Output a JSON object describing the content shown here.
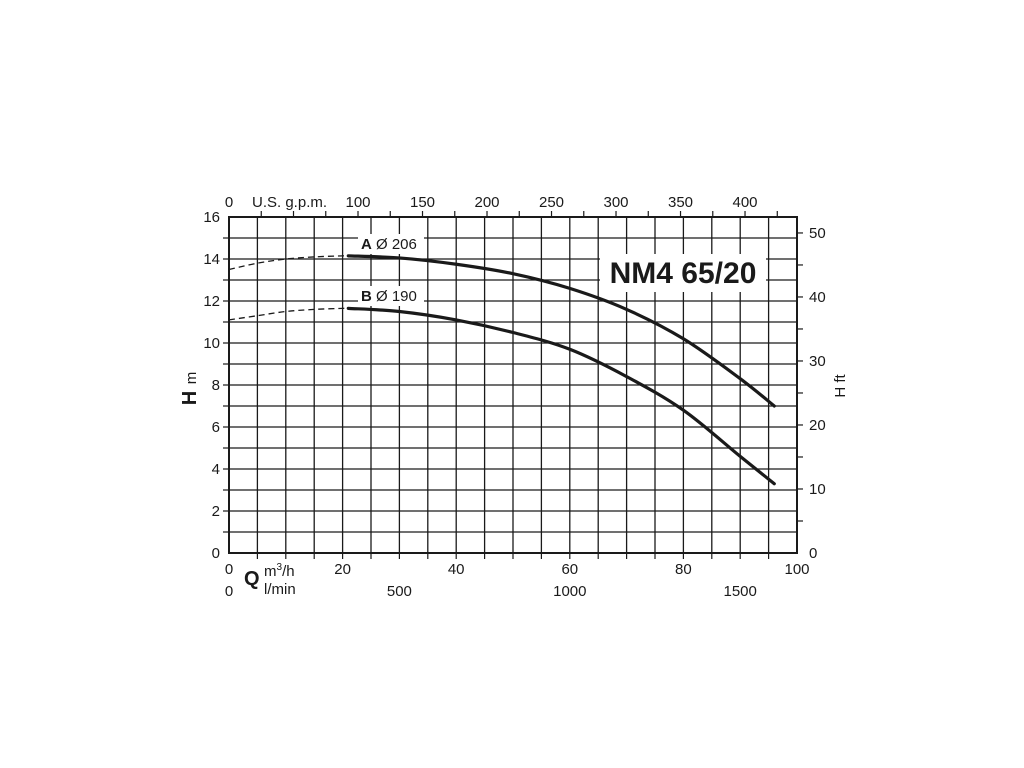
{
  "chart_data": {
    "type": "line",
    "title": "NM4 65/20",
    "x_primary": {
      "quantity": "Q",
      "unit": "m³/h",
      "range": [
        0,
        100
      ],
      "major_ticks": [
        0,
        20,
        40,
        60,
        80,
        100
      ]
    },
    "x_secondary": {
      "unit": "l/min",
      "tick_labels": [
        0,
        500,
        1000,
        1500
      ]
    },
    "x_top": {
      "unit": "U.S. g.p.m.",
      "tick_labels": [
        0,
        100,
        150,
        200,
        250,
        300,
        350,
        400
      ]
    },
    "y_left": {
      "quantity": "H",
      "unit": "m",
      "range": [
        0,
        16
      ],
      "tick_labels": [
        0,
        2,
        4,
        6,
        8,
        10,
        12,
        14,
        16
      ]
    },
    "y_right": {
      "quantity": "H",
      "unit": "ft",
      "tick_labels": [
        0,
        10,
        20,
        30,
        40,
        50
      ]
    },
    "grid": true,
    "series": [
      {
        "name": "A",
        "label": "Ø 206",
        "dashed": {
          "x": [
            0,
            5,
            10,
            15,
            20,
            21
          ],
          "y": [
            13.5,
            13.8,
            14.0,
            14.1,
            14.15,
            14.15
          ]
        },
        "solid": {
          "x": [
            21,
            30,
            40,
            50,
            60,
            70,
            80,
            90,
            96
          ],
          "y": [
            14.15,
            14.05,
            13.75,
            13.3,
            12.6,
            11.6,
            10.2,
            8.3,
            7.0
          ]
        }
      },
      {
        "name": "B",
        "label": "Ø 190",
        "dashed": {
          "x": [
            0,
            5,
            10,
            15,
            20,
            21
          ],
          "y": [
            11.1,
            11.3,
            11.5,
            11.6,
            11.65,
            11.65
          ]
        },
        "solid": {
          "x": [
            21,
            30,
            40,
            50,
            60,
            70,
            80,
            90,
            96
          ],
          "y": [
            11.65,
            11.5,
            11.1,
            10.5,
            9.7,
            8.4,
            6.8,
            4.6,
            3.3
          ]
        }
      }
    ]
  },
  "labels": {
    "title": "NM4 65/20",
    "gpm_unit": "U.S. g.p.m.",
    "y_left_quantity": "H",
    "y_left_unit": "m",
    "y_right_label": "H ft",
    "x_quantity": "Q",
    "x_unit_1": "m",
    "x_unit_1_sup": "3",
    "x_unit_1_rest": "/h",
    "x_unit_2": "l/min",
    "curve_a_letter": "A",
    "curve_a_dia": "Ø 206",
    "curve_b_letter": "B",
    "curve_b_dia": "Ø 190"
  }
}
